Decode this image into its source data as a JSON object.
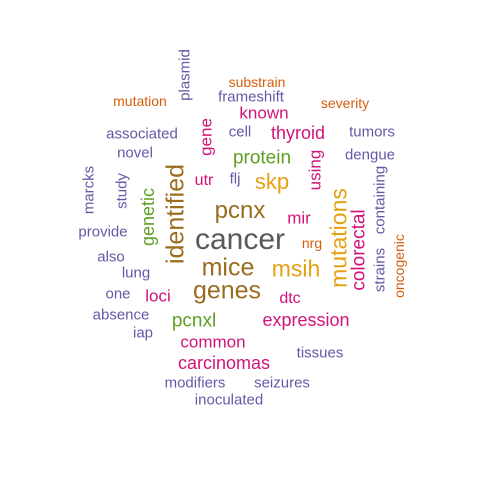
{
  "palette": {
    "gray": "#595959",
    "purple": "#6459a6",
    "magenta": "#d1137a",
    "orange": "#d55e0c",
    "gold": "#e6a013",
    "green": "#5ea024",
    "brown": "#9a6d1f"
  },
  "words": [
    {
      "text": "cancer",
      "color": "gray",
      "weight": 1.0,
      "vertical": false
    },
    {
      "text": "genes",
      "color": "brown",
      "weight": 0.8,
      "vertical": false
    },
    {
      "text": "mice",
      "color": "brown",
      "weight": 0.78,
      "vertical": false
    },
    {
      "text": "identified",
      "color": "brown",
      "weight": 0.78,
      "vertical": true
    },
    {
      "text": "pcnx",
      "color": "brown",
      "weight": 0.7,
      "vertical": false
    },
    {
      "text": "msih",
      "color": "gold",
      "weight": 0.68,
      "vertical": false
    },
    {
      "text": "mutations",
      "color": "gold",
      "weight": 0.68,
      "vertical": true
    },
    {
      "text": "skp",
      "color": "gold",
      "weight": 0.62,
      "vertical": false
    },
    {
      "text": "colorectal",
      "color": "magenta",
      "weight": 0.55,
      "vertical": true
    },
    {
      "text": "protein",
      "color": "green",
      "weight": 0.52,
      "vertical": false
    },
    {
      "text": "pcnxl",
      "color": "green",
      "weight": 0.52,
      "vertical": false
    },
    {
      "text": "genetic",
      "color": "green",
      "weight": 0.48,
      "vertical": true
    },
    {
      "text": "expression",
      "color": "magenta",
      "weight": 0.48,
      "vertical": false
    },
    {
      "text": "carcinomas",
      "color": "magenta",
      "weight": 0.48,
      "vertical": false
    },
    {
      "text": "thyroid",
      "color": "magenta",
      "weight": 0.48,
      "vertical": false
    },
    {
      "text": "known",
      "color": "magenta",
      "weight": 0.45,
      "vertical": false
    },
    {
      "text": "mir",
      "color": "magenta",
      "weight": 0.45,
      "vertical": false
    },
    {
      "text": "common",
      "color": "magenta",
      "weight": 0.45,
      "vertical": false
    },
    {
      "text": "gene",
      "color": "magenta",
      "weight": 0.45,
      "vertical": true
    },
    {
      "text": "using",
      "color": "magenta",
      "weight": 0.45,
      "vertical": true
    },
    {
      "text": "loci",
      "color": "magenta",
      "weight": 0.42,
      "vertical": false
    },
    {
      "text": "dtc",
      "color": "magenta",
      "weight": 0.42,
      "vertical": false
    },
    {
      "text": "utr",
      "color": "magenta",
      "weight": 0.42,
      "vertical": false
    },
    {
      "text": "flj",
      "color": "purple",
      "weight": 0.36,
      "vertical": false
    },
    {
      "text": "strains",
      "color": "purple",
      "weight": 0.36,
      "vertical": true
    },
    {
      "text": "containing",
      "color": "purple",
      "weight": 0.36,
      "vertical": true
    },
    {
      "text": "frameshift",
      "color": "purple",
      "weight": 0.36,
      "vertical": false
    },
    {
      "text": "plasmid",
      "color": "purple",
      "weight": 0.36,
      "vertical": true
    },
    {
      "text": "associated",
      "color": "purple",
      "weight": 0.36,
      "vertical": false
    },
    {
      "text": "cell",
      "color": "purple",
      "weight": 0.36,
      "vertical": false
    },
    {
      "text": "tumors",
      "color": "purple",
      "weight": 0.36,
      "vertical": false
    },
    {
      "text": "novel",
      "color": "purple",
      "weight": 0.36,
      "vertical": false
    },
    {
      "text": "dengue",
      "color": "purple",
      "weight": 0.36,
      "vertical": false
    },
    {
      "text": "marcks",
      "color": "purple",
      "weight": 0.36,
      "vertical": true
    },
    {
      "text": "study",
      "color": "purple",
      "weight": 0.36,
      "vertical": true
    },
    {
      "text": "provide",
      "color": "purple",
      "weight": 0.36,
      "vertical": false
    },
    {
      "text": "also",
      "color": "purple",
      "weight": 0.36,
      "vertical": false
    },
    {
      "text": "lung",
      "color": "purple",
      "weight": 0.36,
      "vertical": false
    },
    {
      "text": "one",
      "color": "purple",
      "weight": 0.36,
      "vertical": false
    },
    {
      "text": "absence",
      "color": "purple",
      "weight": 0.36,
      "vertical": false
    },
    {
      "text": "iap",
      "color": "purple",
      "weight": 0.36,
      "vertical": false
    },
    {
      "text": "tissues",
      "color": "purple",
      "weight": 0.36,
      "vertical": false
    },
    {
      "text": "modifiers",
      "color": "purple",
      "weight": 0.36,
      "vertical": false
    },
    {
      "text": "seizures",
      "color": "purple",
      "weight": 0.36,
      "vertical": false
    },
    {
      "text": "inoculated",
      "color": "purple",
      "weight": 0.36,
      "vertical": false
    },
    {
      "text": "substrain",
      "color": "orange",
      "weight": 0.3,
      "vertical": false
    },
    {
      "text": "mutation",
      "color": "orange",
      "weight": 0.3,
      "vertical": false
    },
    {
      "text": "severity",
      "color": "orange",
      "weight": 0.3,
      "vertical": false
    },
    {
      "text": "nrg",
      "color": "orange",
      "weight": 0.3,
      "vertical": false
    },
    {
      "text": "oncogenic",
      "color": "orange",
      "weight": 0.3,
      "vertical": true
    }
  ]
}
